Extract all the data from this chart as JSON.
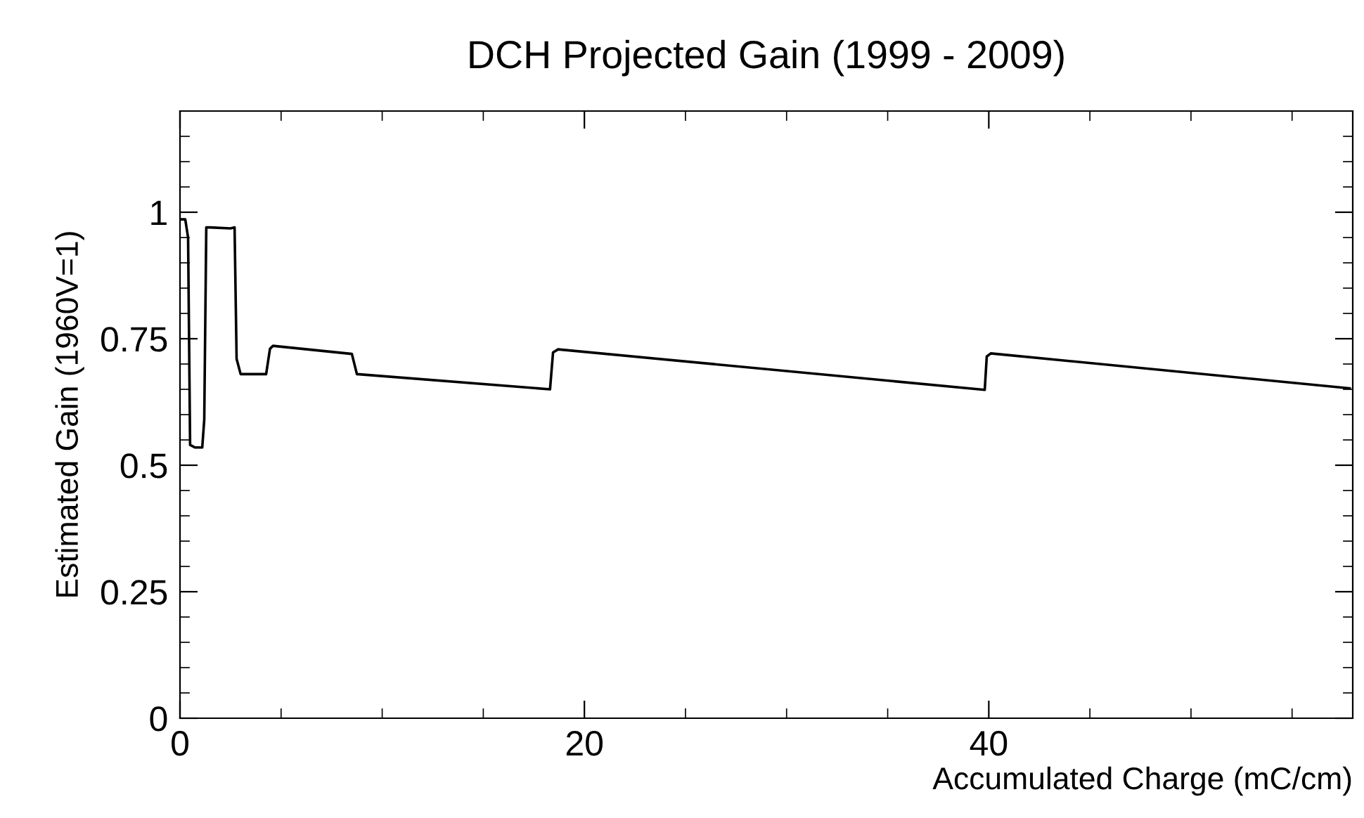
{
  "chart_data": {
    "type": "line",
    "title": "DCH Projected Gain (1999 - 2009)",
    "xlabel": "Accumulated Charge (mC/cm)",
    "ylabel": "Estimated Gain (1960V=1)",
    "series": [
      {
        "color": "#000000",
        "x": [
          0.08,
          0.26,
          0.4,
          0.5,
          0.75,
          1.1,
          1.2,
          1.3,
          1.5,
          2.5,
          2.7,
          2.8,
          3.0,
          4.26,
          4.45,
          4.6,
          8.5,
          8.75,
          18.3,
          18.45,
          18.7,
          39.8,
          39.9,
          40.1,
          57.85
        ],
        "values": [
          0.986,
          0.986,
          0.95,
          0.54,
          0.535,
          0.535,
          0.59,
          0.97,
          0.97,
          0.968,
          0.97,
          0.71,
          0.68,
          0.68,
          0.73,
          0.736,
          0.72,
          0.68,
          0.65,
          0.723,
          0.729,
          0.649,
          0.715,
          0.721,
          0.652
        ]
      }
    ],
    "xlim": [
      0,
      58
    ],
    "xticks": [
      0,
      20,
      40
    ],
    "ylim": [
      0,
      1.2
    ],
    "yticks": [
      0,
      0.25,
      0.5,
      0.75,
      1
    ],
    "grid": false,
    "legend": false,
    "marker": "none",
    "line_style": "solid"
  }
}
